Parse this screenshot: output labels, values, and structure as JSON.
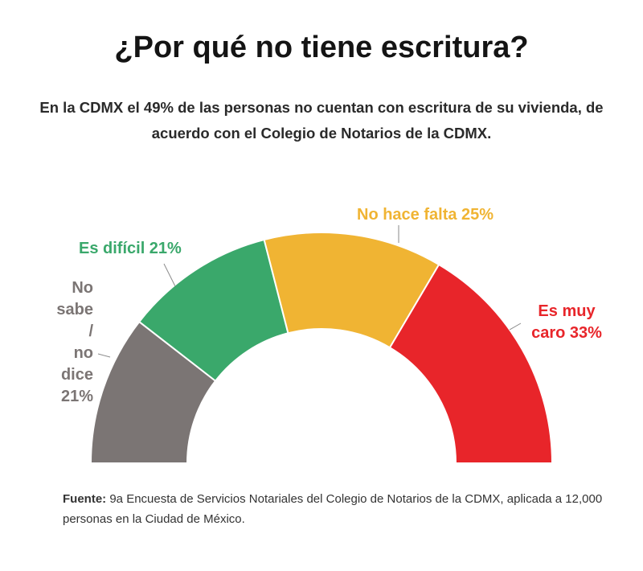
{
  "title": "¿Por qué no tiene escritura?",
  "subtitle": "En la CDMX el 49% de las personas no cuentan con escritura de su vivienda, de acuerdo con el Colegio de Notarios de la CDMX.",
  "chart_data": {
    "type": "pie",
    "variant": "half-donut",
    "slices": [
      {
        "label": "No sabe / no dice",
        "value": 21,
        "color": "#7b7574"
      },
      {
        "label": "Es difícil",
        "value": 21,
        "color": "#3aa86b"
      },
      {
        "label": "No hace falta",
        "value": 25,
        "color": "#f0b433"
      },
      {
        "label": "Es muy caro",
        "value": 33,
        "color": "#e8252a"
      }
    ]
  },
  "labels": {
    "gray_lines": [
      "No",
      "sabe /",
      "no",
      "dice",
      "21%"
    ],
    "green": "Es difícil 21%",
    "yellow": "No hace falta 25%",
    "red_lines": [
      "Es muy",
      "caro 33%"
    ]
  },
  "source": {
    "prefix": "Fuente:",
    "text": " 9a Encuesta de Servicios Notariales del Colegio de Notarios de la CDMX, aplicada a 12,000 personas en la Ciudad de México."
  }
}
